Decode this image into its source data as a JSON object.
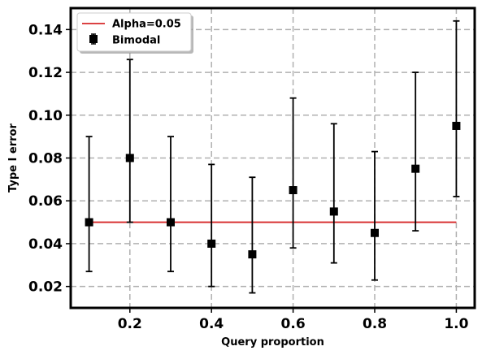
{
  "chart_data": {
    "type": "scatter",
    "title": "",
    "xlabel": "Query proportion",
    "ylabel": "Type I error",
    "xlim": [
      0.055,
      1.045
    ],
    "ylim": [
      0.01,
      0.15
    ],
    "x_ticks": [
      0.2,
      0.4,
      0.6,
      0.8,
      1.0
    ],
    "x_tick_labels": [
      "0.2",
      "0.4",
      "0.6",
      "0.8",
      "1.0"
    ],
    "y_ticks": [
      0.02,
      0.04,
      0.06,
      0.08,
      0.1,
      0.12,
      0.14
    ],
    "y_tick_labels": [
      "0.02",
      "0.04",
      "0.06",
      "0.08",
      "0.10",
      "0.12",
      "0.14"
    ],
    "grid": true,
    "legend_position": "top-left",
    "series": [
      {
        "name": "Bimodal",
        "kind": "errorbar",
        "color": "#000000",
        "marker": "square",
        "x": [
          0.1,
          0.2,
          0.3,
          0.4,
          0.5,
          0.6,
          0.7,
          0.8,
          0.9,
          1.0
        ],
        "y": [
          0.05,
          0.08,
          0.05,
          0.04,
          0.035,
          0.065,
          0.055,
          0.045,
          0.075,
          0.095
        ],
        "lower": [
          0.027,
          0.05,
          0.027,
          0.02,
          0.017,
          0.038,
          0.031,
          0.023,
          0.046,
          0.062
        ],
        "upper": [
          0.09,
          0.126,
          0.09,
          0.077,
          0.071,
          0.108,
          0.096,
          0.083,
          0.12,
          0.144
        ]
      },
      {
        "name": "Alpha=0.05",
        "kind": "line",
        "color": "#d62728",
        "x": [
          0.1,
          1.0
        ],
        "y": [
          0.05,
          0.05
        ]
      }
    ]
  }
}
